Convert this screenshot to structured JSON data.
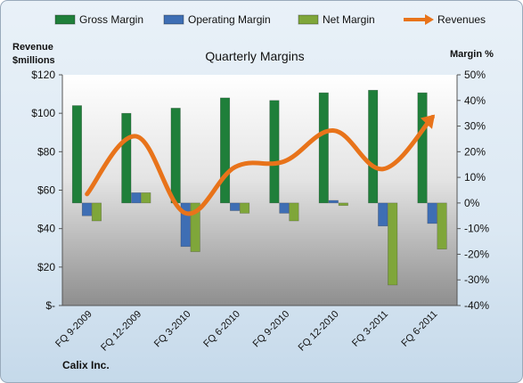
{
  "chart_data": {
    "type": "bar",
    "title": "Quarterly Margins",
    "left_axis_title_line1": "Revenue",
    "left_axis_title_line2": "$millions",
    "right_axis_title": "Margin %",
    "footer": "Calix Inc.",
    "categories": [
      "FQ 9-2009",
      "FQ 12-2009",
      "FQ 3-2010",
      "FQ 6-2010",
      "FQ 9-2010",
      "FQ 12-2010",
      "FQ 3-2011",
      "FQ 6-2011"
    ],
    "left_ylim": [
      0,
      120
    ],
    "left_ticks": [
      "$-",
      "$20",
      "$40",
      "$60",
      "$80",
      "$100",
      "$120"
    ],
    "right_ylim": [
      -40,
      50
    ],
    "right_ticks": [
      "-40%",
      "-30%",
      "-20%",
      "-10%",
      "0%",
      "10%",
      "20%",
      "30%",
      "40%",
      "50%"
    ],
    "series": [
      {
        "name": "Gross Margin",
        "axis": "right",
        "kind": "bar",
        "color": "#1f7f3a",
        "values": [
          38,
          35,
          37,
          41,
          40,
          43,
          44,
          43
        ]
      },
      {
        "name": "Operating Margin",
        "axis": "right",
        "kind": "bar",
        "color": "#3e6eb4",
        "values": [
          -5,
          4,
          -17,
          -3,
          -4,
          1,
          -9,
          -8
        ]
      },
      {
        "name": "Net Margin",
        "axis": "right",
        "kind": "bar",
        "color": "#7fa63a",
        "values": [
          -7,
          4,
          -19,
          -4,
          -7,
          -1,
          -32,
          -18
        ]
      },
      {
        "name": "Revenues",
        "axis": "left",
        "kind": "line",
        "color": "#e8731a",
        "values": [
          58,
          88,
          48,
          72,
          75,
          91,
          71,
          98
        ]
      }
    ],
    "legend_position": "top",
    "grid": false
  }
}
